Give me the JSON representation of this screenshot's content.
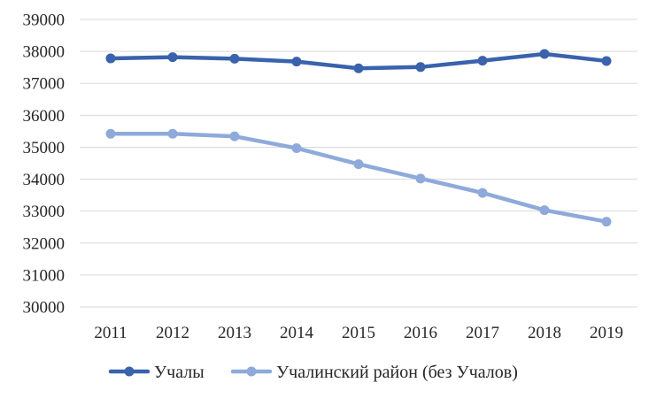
{
  "chart_data": {
    "type": "line",
    "categories": [
      "2011",
      "2012",
      "2013",
      "2014",
      "2015",
      "2016",
      "2017",
      "2018",
      "2019"
    ],
    "series": [
      {
        "name": "Учалы",
        "color": "#3a62ad",
        "values": [
          37780,
          37820,
          37770,
          37680,
          37470,
          37510,
          37710,
          37920,
          37700
        ]
      },
      {
        "name": "Учалинский район (без Учалов)",
        "color": "#8eaadb",
        "values": [
          35420,
          35420,
          35340,
          34970,
          34470,
          34020,
          33570,
          33030,
          32670
        ]
      }
    ],
    "ylim": [
      30000,
      39000
    ],
    "yticks": [
      30000,
      31000,
      32000,
      33000,
      34000,
      35000,
      36000,
      37000,
      38000,
      39000
    ],
    "grid": true,
    "legend": "bottom",
    "title": "",
    "xlabel": "",
    "ylabel": ""
  }
}
